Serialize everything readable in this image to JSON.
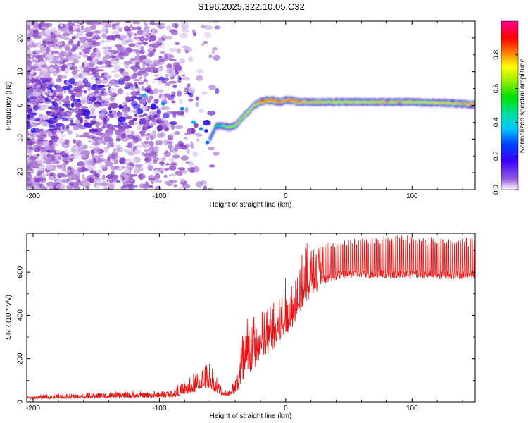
{
  "title": "S196.2025.322.10.05.C32",
  "colors": {
    "snr_line": "#ee1111",
    "frame": "#000000"
  },
  "chart_data": [
    {
      "type": "heatmap",
      "name": "spectrogram",
      "xlabel": "Height of straight line (km)",
      "ylabel": "Frequency (Hz)",
      "xlim": [
        -205,
        150
      ],
      "ylim": [
        -25,
        25
      ],
      "xticks": [
        -200,
        -100,
        0,
        100
      ],
      "yticks": [
        -20,
        -10,
        0,
        10,
        20
      ],
      "colorbar": {
        "label": "Normalized spectral amplitude",
        "range": [
          0,
          1
        ],
        "ticks": [
          0.0,
          0.2,
          0.4,
          0.6,
          0.8
        ],
        "tick_labels": [
          "0.0",
          "0.2",
          "0.4",
          "0.6",
          "0.8"
        ],
        "colormap": [
          "#ffffff",
          "#7b2fbe",
          "#0000ff",
          "#00c8ff",
          "#00e040",
          "#b0ff00",
          "#ffff00",
          "#ff8000",
          "#ff0000",
          "#ff0090"
        ]
      },
      "ridge": {
        "x": [
          -60,
          -55,
          -50,
          -45,
          -40,
          -35,
          -30,
          -25,
          -20,
          -15,
          -10,
          -5,
          0,
          5,
          10,
          20,
          40,
          60,
          80,
          100,
          120,
          140,
          150
        ],
        "freq_hz": [
          -10,
          -6,
          -6,
          -6.5,
          -6,
          -4,
          -2,
          0,
          1,
          1.5,
          1.5,
          1,
          1.5,
          1.5,
          1,
          1,
          1,
          1,
          1,
          1,
          0.8,
          0.5,
          0.3
        ],
        "amplitude": [
          0.35,
          0.4,
          0.5,
          0.55,
          0.6,
          0.6,
          0.65,
          0.7,
          0.85,
          0.9,
          0.95,
          0.85,
          0.8,
          0.85,
          0.8,
          0.75,
          0.7,
          0.7,
          0.75,
          0.7,
          0.7,
          0.75,
          0.85
        ]
      }
    },
    {
      "type": "line",
      "name": "snr",
      "xlabel": "Height of straight line (km)",
      "ylabel": "SNR (10 * v/v)",
      "xlim": [
        -205,
        150
      ],
      "ylim": [
        0,
        780
      ],
      "xticks": [
        -200,
        -100,
        0,
        100
      ],
      "yticks": [
        0,
        200,
        400,
        600
      ],
      "envelope": {
        "x": [
          -205,
          -150,
          -110,
          -90,
          -75,
          -65,
          -60,
          -55,
          -50,
          -45,
          -40,
          -35,
          -30,
          -25,
          -20,
          -15,
          -10,
          -5,
          0,
          5,
          10,
          15,
          20,
          25,
          30,
          40,
          50,
          60,
          80,
          100,
          120,
          150
        ],
        "base": [
          15,
          20,
          20,
          25,
          40,
          70,
          70,
          45,
          30,
          30,
          45,
          80,
          130,
          170,
          200,
          230,
          260,
          290,
          330,
          360,
          420,
          470,
          520,
          555,
          570,
          585,
          590,
          590,
          590,
          590,
          585,
          590
        ],
        "peak": [
          30,
          45,
          50,
          60,
          120,
          170,
          200,
          130,
          60,
          60,
          110,
          330,
          450,
          400,
          430,
          440,
          470,
          500,
          560,
          580,
          700,
          720,
          730,
          730,
          740,
          740,
          750,
          760,
          770,
          770,
          760,
          760
        ]
      }
    }
  ]
}
